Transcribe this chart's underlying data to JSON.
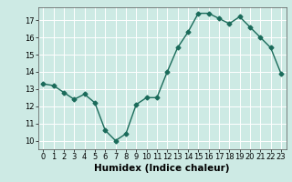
{
  "x": [
    0,
    1,
    2,
    3,
    4,
    5,
    6,
    7,
    8,
    9,
    10,
    11,
    12,
    13,
    14,
    15,
    16,
    17,
    18,
    19,
    20,
    21,
    22,
    23
  ],
  "y": [
    13.3,
    13.2,
    12.8,
    12.4,
    12.7,
    12.2,
    10.6,
    10.0,
    10.4,
    12.1,
    12.5,
    12.5,
    14.0,
    15.4,
    16.3,
    17.4,
    17.4,
    17.1,
    16.8,
    17.2,
    16.6,
    16.0,
    15.4,
    13.9
  ],
  "xlabel": "Humidex (Indice chaleur)",
  "xlim": [
    -0.5,
    23.5
  ],
  "ylim": [
    9.5,
    17.75
  ],
  "yticks": [
    10,
    11,
    12,
    13,
    14,
    15,
    16,
    17
  ],
  "xticks": [
    0,
    1,
    2,
    3,
    4,
    5,
    6,
    7,
    8,
    9,
    10,
    11,
    12,
    13,
    14,
    15,
    16,
    17,
    18,
    19,
    20,
    21,
    22,
    23
  ],
  "line_color": "#1a6b5a",
  "marker": "D",
  "marker_size": 2.5,
  "bg_color": "#cdeae4",
  "grid_color": "#ffffff",
  "xlabel_fontsize": 7.5,
  "tick_fontsize": 6,
  "line_width": 1.0
}
